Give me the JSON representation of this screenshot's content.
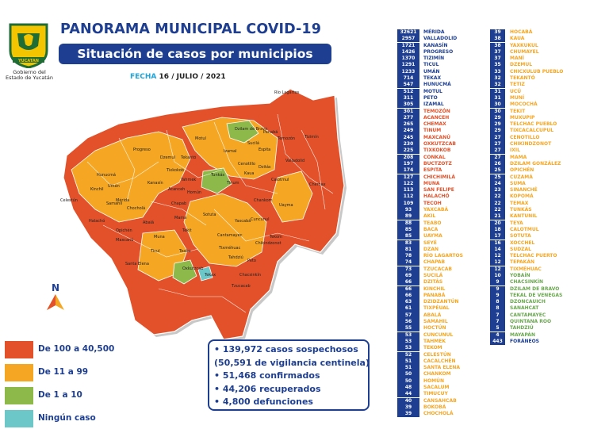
{
  "header": {
    "title": "PANORAMA MUNICIPAL COVID-19",
    "subtitle": "Situación de casos por municipios",
    "date_label": "FECHA",
    "date_value": "16 / JULIO / 2021",
    "logo_caption_1": "Gobierno del",
    "logo_caption_2": "Estado de Yucatán",
    "logo_text": "YUCATAN"
  },
  "north_label": "N",
  "legend": [
    {
      "label": "De 100 a 40,500",
      "color": "#e2512a"
    },
    {
      "label": "De 11 a 99",
      "color": "#f5a623"
    },
    {
      "label": "De 1 a 10",
      "color": "#8db84a"
    },
    {
      "label": "Ningún caso",
      "color": "#6cc7c9"
    }
  ],
  "stats": [
    "• 139,972 casos sospechosos",
    "(50,591 de vigilancia centinela)",
    "• 51,468 confirmados",
    "• 44,206 recuperados",
    "• 4,800 defunciones"
  ],
  "map_labels": [
    "Dzilam de Bravo",
    "Río Lagartos",
    "Tizimín",
    "Chemax",
    "Mérida",
    "Tekax",
    "Tzucacab",
    "Peto",
    "Tekom",
    "Chankom",
    "Valladolid",
    "Hunucmá",
    "Celestún",
    "Motul",
    "Izamal",
    "Maxcanú",
    "Ticul",
    "Oxkutzcab",
    "Santa Elena",
    "Halachó",
    "Yaxcabá",
    "Tahdziú",
    "Chikindzonot",
    "Temozón",
    "Progreso",
    "Tixkokob",
    "Sotuta",
    "Abalá",
    "Muna",
    "Espita",
    "Calotmul",
    "Panabá",
    "Sucilá",
    "Umán",
    "Kanasín",
    "Acanceh",
    "Tekantó",
    "Dzemul",
    "Homún",
    "Cantamayec",
    "Tixméhuac",
    "Uayma",
    "Cuncunul",
    "Kaua",
    "Tinum",
    "Tunkás",
    "Kinchil",
    "Samahil",
    "Chocholá",
    "Opichén",
    "Tekit",
    "Mama",
    "Chapab",
    "Dzitás",
    "Teabo",
    "Chacsinkín",
    "Tahmek",
    "Cenotillo"
  ],
  "municipios": [
    {
      "n": "32621",
      "name": "MÉRIDA",
      "c": "#1e3f91"
    },
    {
      "n": "2957",
      "name": "VALLADOLID",
      "c": "#1e3f91"
    },
    {
      "n": "1721",
      "name": "KANASÍN",
      "c": "#1e3f91"
    },
    {
      "n": "1426",
      "name": "PROGRESO",
      "c": "#1e3f91"
    },
    {
      "n": "1370",
      "name": "TIZIMÍN",
      "c": "#1e3f91"
    },
    {
      "n": "1291",
      "name": "TICUL",
      "c": "#1e3f91"
    },
    {
      "n": "1233",
      "name": "UMÁN",
      "c": "#1e3f91"
    },
    {
      "n": "714",
      "name": "TEKAX",
      "c": "#1e3f91"
    },
    {
      "n": "547",
      "name": "HUNUCMÁ",
      "c": "#1e3f91"
    },
    {
      "n": "512",
      "name": "MOTUL",
      "c": "#1e3f91"
    },
    {
      "n": "311",
      "name": "PETO",
      "c": "#1e3f91"
    },
    {
      "n": "305",
      "name": "IZAMAL",
      "c": "#1e3f91"
    },
    {
      "n": "301",
      "name": "TEMOZÓN",
      "c": "#e2512a"
    },
    {
      "n": "277",
      "name": "ACANCEH",
      "c": "#e2512a"
    },
    {
      "n": "265",
      "name": "CHEMAX",
      "c": "#e2512a"
    },
    {
      "n": "249",
      "name": "TINUM",
      "c": "#e2512a"
    },
    {
      "n": "245",
      "name": "MAXCANÚ",
      "c": "#e2512a"
    },
    {
      "n": "230",
      "name": "OXKUTZCAB",
      "c": "#e2512a"
    },
    {
      "n": "225",
      "name": "TIXKOKOB",
      "c": "#e2512a"
    },
    {
      "n": "208",
      "name": "CONKAL",
      "c": "#e2512a"
    },
    {
      "n": "197",
      "name": "BUCTZOTZ",
      "c": "#e2512a"
    },
    {
      "n": "174",
      "name": "ESPITA",
      "c": "#e2512a"
    },
    {
      "n": "127",
      "name": "CHICHIMILÁ",
      "c": "#e2512a"
    },
    {
      "n": "122",
      "name": "MUNA",
      "c": "#e2512a"
    },
    {
      "n": "113",
      "name": "SAN FELIPE",
      "c": "#e2512a"
    },
    {
      "n": "112",
      "name": "HALACHÓ",
      "c": "#e2512a"
    },
    {
      "n": "109",
      "name": "TECOH",
      "c": "#e2512a"
    },
    {
      "n": "93",
      "name": "YAXCABÁ",
      "c": "#f5a623"
    },
    {
      "n": "89",
      "name": "AKIL",
      "c": "#f5a623"
    },
    {
      "n": "88",
      "name": "TEABO",
      "c": "#f5a623"
    },
    {
      "n": "85",
      "name": "BACA",
      "c": "#f5a623"
    },
    {
      "n": "85",
      "name": "UAYMA",
      "c": "#f5a623"
    },
    {
      "n": "83",
      "name": "SEYÉ",
      "c": "#f5a623"
    },
    {
      "n": "81",
      "name": "DZAN",
      "c": "#f5a623"
    },
    {
      "n": "78",
      "name": "RÍO LAGARTOS",
      "c": "#f5a623"
    },
    {
      "n": "74",
      "name": "CHAPAB",
      "c": "#f5a623"
    },
    {
      "n": "73",
      "name": "TZUCACAB",
      "c": "#f5a623"
    },
    {
      "n": "69",
      "name": "SUCILÁ",
      "c": "#f5a623"
    },
    {
      "n": "66",
      "name": "DZITÁS",
      "c": "#f5a623"
    },
    {
      "n": "66",
      "name": "KINCHIL",
      "c": "#f5a623"
    },
    {
      "n": "66",
      "name": "PANABÁ",
      "c": "#f5a623"
    },
    {
      "n": "63",
      "name": "DZIDZANTÚN",
      "c": "#f5a623"
    },
    {
      "n": "61",
      "name": "TIXPÉUAL",
      "c": "#f5a623"
    },
    {
      "n": "57",
      "name": "ABALÁ",
      "c": "#f5a623"
    },
    {
      "n": "56",
      "name": "SAMAHIL",
      "c": "#f5a623"
    },
    {
      "n": "55",
      "name": "HOCTÚN",
      "c": "#f5a623"
    },
    {
      "n": "53",
      "name": "CUNCUNUL",
      "c": "#f5a623"
    },
    {
      "n": "53",
      "name": "TAHMEK",
      "c": "#f5a623"
    },
    {
      "n": "53",
      "name": "TEKOM",
      "c": "#f5a623"
    },
    {
      "n": "52",
      "name": "CELESTÚN",
      "c": "#f5a623"
    },
    {
      "n": "51",
      "name": "CACALCHÉN",
      "c": "#f5a623"
    },
    {
      "n": "51",
      "name": "SANTA ELENA",
      "c": "#f5a623"
    },
    {
      "n": "50",
      "name": "CHANKOM",
      "c": "#f5a623"
    },
    {
      "n": "50",
      "name": "HOMÚN",
      "c": "#f5a623"
    },
    {
      "n": "48",
      "name": "SACALUM",
      "c": "#f5a623"
    },
    {
      "n": "44",
      "name": "TIMUCUY",
      "c": "#f5a623"
    },
    {
      "n": "40",
      "name": "CANSAHCAB",
      "c": "#f5a623"
    },
    {
      "n": "39",
      "name": "BOKOBÁ",
      "c": "#f5a623"
    },
    {
      "n": "39",
      "name": "CHOCHOLÁ",
      "c": "#f5a623"
    },
    {
      "n": "39",
      "name": "HOCABÁ",
      "c": "#f5a623"
    },
    {
      "n": "38",
      "name": "KAUA",
      "c": "#f5a623"
    },
    {
      "n": "38",
      "name": "YAXKUKUL",
      "c": "#f5a623"
    },
    {
      "n": "37",
      "name": "CHUMAYEL",
      "c": "#f5a623"
    },
    {
      "n": "37",
      "name": "MANÍ",
      "c": "#f5a623"
    },
    {
      "n": "35",
      "name": "DZEMUL",
      "c": "#f5a623"
    },
    {
      "n": "33",
      "name": "CHICXULUB PUEBLO",
      "c": "#f5a623"
    },
    {
      "n": "32",
      "name": "TEKANTÓ",
      "c": "#f5a623"
    },
    {
      "n": "32",
      "name": "TETIZ",
      "c": "#f5a623"
    },
    {
      "n": "31",
      "name": "UCÚ",
      "c": "#f5a623"
    },
    {
      "n": "31",
      "name": "MUNÍ",
      "c": "#f5a623"
    },
    {
      "n": "30",
      "name": "MOCOCHÁ",
      "c": "#f5a623"
    },
    {
      "n": "30",
      "name": "TEKIT",
      "c": "#f5a623"
    },
    {
      "n": "29",
      "name": "MUXUPIP",
      "c": "#f5a623"
    },
    {
      "n": "29",
      "name": "TELCHAC PUEBLO",
      "c": "#f5a623"
    },
    {
      "n": "29",
      "name": "TIXCACALCUPUL",
      "c": "#f5a623"
    },
    {
      "n": "27",
      "name": "CENOTILLO",
      "c": "#f5a623"
    },
    {
      "n": "27",
      "name": "CHIKINDZONOT",
      "c": "#f5a623"
    },
    {
      "n": "27",
      "name": "IXIL",
      "c": "#f5a623"
    },
    {
      "n": "27",
      "name": "MAMA",
      "c": "#f5a623"
    },
    {
      "n": "26",
      "name": "DZILAM GONZÁLEZ",
      "c": "#f5a623"
    },
    {
      "n": "25",
      "name": "OPICHÉN",
      "c": "#f5a623"
    },
    {
      "n": "25",
      "name": "CUZAMÁ",
      "c": "#f5a623"
    },
    {
      "n": "24",
      "name": "SUMA",
      "c": "#f5a623"
    },
    {
      "n": "23",
      "name": "SINANCHÉ",
      "c": "#f5a623"
    },
    {
      "n": "22",
      "name": "KOPOMÁ",
      "c": "#f5a623"
    },
    {
      "n": "22",
      "name": "TEMAX",
      "c": "#f5a623"
    },
    {
      "n": "22",
      "name": "TUNKÁS",
      "c": "#f5a623"
    },
    {
      "n": "21",
      "name": "KANTUNIL",
      "c": "#f5a623"
    },
    {
      "n": "20",
      "name": "TEYA",
      "c": "#f5a623"
    },
    {
      "n": "18",
      "name": "CALOTMUL",
      "c": "#f5a623"
    },
    {
      "n": "17",
      "name": "SOTUTA",
      "c": "#f5a623"
    },
    {
      "n": "16",
      "name": "XOCCHEL",
      "c": "#f5a623"
    },
    {
      "n": "14",
      "name": "SUDZAL",
      "c": "#f5a623"
    },
    {
      "n": "12",
      "name": "TELCHAC PUERTO",
      "c": "#f5a623"
    },
    {
      "n": "12",
      "name": "TEPAKÁN",
      "c": "#f5a623"
    },
    {
      "n": "12",
      "name": "TIXMÉHUAC",
      "c": "#f5a623"
    },
    {
      "n": "10",
      "name": "YOBAÍN",
      "c": "#6aa84f"
    },
    {
      "n": "9",
      "name": "CHACSINKÍN",
      "c": "#6aa84f"
    },
    {
      "n": "9",
      "name": "DZILAM DE BRAVO",
      "c": "#6aa84f"
    },
    {
      "n": "9",
      "name": "TEKAL DE VENEGAS",
      "c": "#6aa84f"
    },
    {
      "n": "8",
      "name": "DZONCAUICH",
      "c": "#6aa84f"
    },
    {
      "n": "8",
      "name": "SANAHCAT",
      "c": "#6aa84f"
    },
    {
      "n": "7",
      "name": "CANTAMAYEC",
      "c": "#6aa84f"
    },
    {
      "n": "7",
      "name": "QUINTANA ROO",
      "c": "#6aa84f"
    },
    {
      "n": "5",
      "name": "TAHDZIÚ",
      "c": "#6aa84f"
    },
    {
      "n": "4",
      "name": "MAYAPÁN",
      "c": "#6aa84f"
    },
    {
      "n": "443",
      "name": "FORÁNEOS",
      "c": "#1e3f91"
    }
  ]
}
